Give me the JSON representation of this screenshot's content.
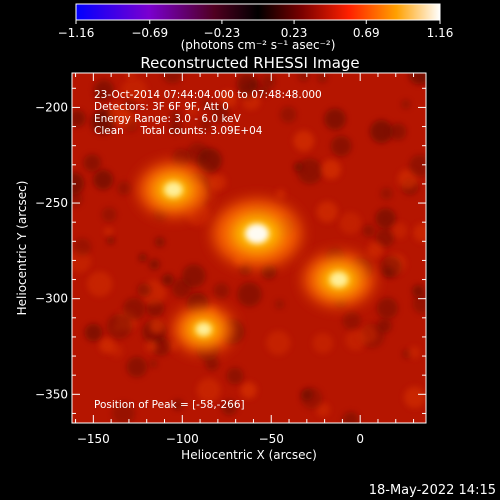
{
  "chart_data": {
    "type": "heatmap",
    "title": "Reconstructed RHESSI Image",
    "xlabel": "Heliocentric X (arcsec)",
    "ylabel": "Heliocentric Y (arcsec)",
    "xlim": [
      -162,
      37
    ],
    "ylim": [
      -365,
      -182
    ],
    "x_ticks": [
      "−150",
      "−100",
      "−50",
      "0"
    ],
    "x_tick_values": [
      -150,
      -100,
      -50,
      0
    ],
    "y_ticks": [
      "−200",
      "−250",
      "−300",
      "−350"
    ],
    "y_tick_values": [
      -200,
      -250,
      -300,
      -350
    ],
    "colorbar": {
      "ticks": [
        "−1.16",
        "−0.69",
        "−0.23",
        "0.23",
        "0.69",
        "1.16"
      ],
      "tick_values": [
        -1.16,
        -0.69,
        -0.23,
        0.23,
        0.69,
        1.16
      ],
      "range": [
        -1.16,
        1.16
      ],
      "label": "(photons cm⁻² s⁻¹ asec⁻²)"
    },
    "annotations": [
      "23-Oct-2014 07:44:04.000 to 07:48:48.000",
      "Detectors: 3F 6F 9F, Att 0",
      "Energy Range: 3.0 - 6.0 keV",
      "Clean     Total counts: 3.09E+04"
    ],
    "peak_label": "Position of Peak = [-58,-266]",
    "sources": [
      {
        "x": -58,
        "y": -266,
        "intensity": 1.16
      },
      {
        "x": -105,
        "y": -243,
        "intensity": 0.85
      },
      {
        "x": -12,
        "y": -290,
        "intensity": 0.85
      },
      {
        "x": -88,
        "y": -316,
        "intensity": 0.7
      }
    ]
  },
  "footer": {
    "timestamp": "18-May-2022 14:15"
  }
}
